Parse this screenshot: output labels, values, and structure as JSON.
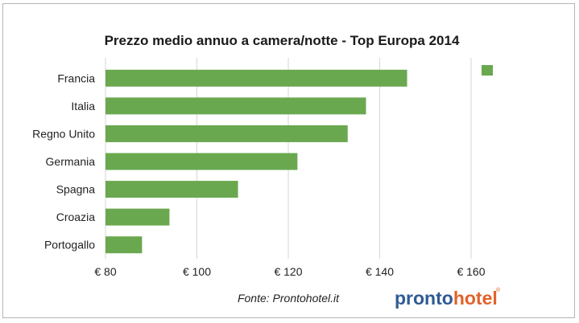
{
  "chart_data": {
    "type": "bar",
    "orientation": "horizontal",
    "title": "Prezzo medio annuo a camera/notte - Top Europa 2014",
    "categories": [
      "Francia",
      "Italia",
      "Regno Unito",
      "Germania",
      "Spagna",
      "Croazia",
      "Portogallo"
    ],
    "values": [
      146,
      137,
      133,
      122,
      109,
      94,
      88
    ],
    "xlim": [
      80,
      165
    ],
    "xticks": [
      80,
      100,
      120,
      140,
      160
    ],
    "xtick_labels": [
      "€ 80",
      "€ 100",
      "€ 120",
      "€ 140",
      "€ 160"
    ],
    "grid": "vertical",
    "legend": "top-right",
    "bar_color": "#6aa84f"
  },
  "source": "Fonte: Prontohotel.it",
  "logo": {
    "part_a": "pronto",
    "part_b": "hotel",
    "mark": "®",
    "color_a": "#2f5b93",
    "color_b": "#e2622a"
  }
}
